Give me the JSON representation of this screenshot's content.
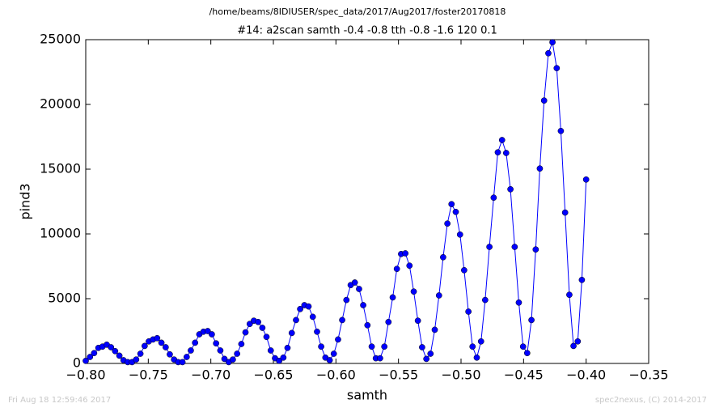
{
  "chart_data": {
    "type": "line",
    "title": "/home/beams/8IDIUSER/spec_data/2017/Aug2017/foster20170818",
    "subtitle": "#14: a2scan  samth -0.4 -0.8  tth -0.8 -1.6  120 0.1",
    "x_label": "samth",
    "y_label": "pind3",
    "footer_left": "Fri Aug 18 12:59:46 2017",
    "footer_right": "spec2nexus, (C) 2014-2017",
    "xlim": [
      -0.8,
      -0.35
    ],
    "ylim": [
      0,
      25000
    ],
    "xticks": [
      {
        "value": -0.8,
        "label": "−0.80"
      },
      {
        "value": -0.75,
        "label": "−0.75"
      },
      {
        "value": -0.7,
        "label": "−0.70"
      },
      {
        "value": -0.65,
        "label": "−0.65"
      },
      {
        "value": -0.6,
        "label": "−0.60"
      },
      {
        "value": -0.55,
        "label": "−0.55"
      },
      {
        "value": -0.5,
        "label": "−0.50"
      },
      {
        "value": -0.45,
        "label": "−0.45"
      },
      {
        "value": -0.4,
        "label": "−0.40"
      },
      {
        "value": -0.35,
        "label": "−0.35"
      }
    ],
    "yticks": [
      0,
      5000,
      10000,
      15000,
      20000,
      25000
    ],
    "x": [
      -0.8,
      -0.7966,
      -0.7933,
      -0.7899,
      -0.7866,
      -0.7832,
      -0.7798,
      -0.7765,
      -0.7731,
      -0.7698,
      -0.7664,
      -0.763,
      -0.7597,
      -0.7563,
      -0.7529,
      -0.7496,
      -0.7462,
      -0.7429,
      -0.7395,
      -0.7361,
      -0.7328,
      -0.7294,
      -0.7261,
      -0.7227,
      -0.7193,
      -0.716,
      -0.7126,
      -0.7092,
      -0.7059,
      -0.7025,
      -0.6992,
      -0.6958,
      -0.6924,
      -0.6891,
      -0.6857,
      -0.6824,
      -0.679,
      -0.6756,
      -0.6723,
      -0.6689,
      -0.6656,
      -0.6622,
      -0.6588,
      -0.6555,
      -0.6521,
      -0.6487,
      -0.6454,
      -0.642,
      -0.6387,
      -0.6353,
      -0.6319,
      -0.6286,
      -0.6252,
      -0.6219,
      -0.6185,
      -0.6151,
      -0.6118,
      -0.6084,
      -0.605,
      -0.6017,
      -0.5983,
      -0.595,
      -0.5916,
      -0.5882,
      -0.5849,
      -0.5815,
      -0.5782,
      -0.5748,
      -0.5714,
      -0.5681,
      -0.5647,
      -0.5613,
      -0.558,
      -0.5546,
      -0.5513,
      -0.5479,
      -0.5445,
      -0.5412,
      -0.5378,
      -0.5345,
      -0.5311,
      -0.5277,
      -0.5244,
      -0.521,
      -0.5176,
      -0.5143,
      -0.5109,
      -0.5076,
      -0.5042,
      -0.5008,
      -0.4975,
      -0.4941,
      -0.4908,
      -0.4874,
      -0.484,
      -0.4807,
      -0.4773,
      -0.4739,
      -0.4706,
      -0.4672,
      -0.4639,
      -0.4605,
      -0.4571,
      -0.4538,
      -0.4504,
      -0.4471,
      -0.4437,
      -0.4403,
      -0.437,
      -0.4336,
      -0.4302,
      -0.4269,
      -0.4235,
      -0.4202,
      -0.4168,
      -0.4134,
      -0.4101,
      -0.4067,
      -0.4034,
      -0.4
    ],
    "series": [
      {
        "name": "pind3",
        "color": "#0000ff",
        "values": [
          200,
          500,
          800,
          1200,
          1300,
          1450,
          1250,
          950,
          600,
          250,
          100,
          100,
          300,
          750,
          1350,
          1700,
          1850,
          1950,
          1600,
          1250,
          700,
          300,
          100,
          100,
          500,
          1000,
          1600,
          2250,
          2450,
          2500,
          2250,
          1550,
          1000,
          350,
          100,
          300,
          750,
          1500,
          2400,
          3050,
          3300,
          3200,
          2750,
          2050,
          1000,
          400,
          200,
          450,
          1200,
          2350,
          3350,
          4200,
          4500,
          4400,
          3600,
          2450,
          1300,
          450,
          250,
          750,
          1850,
          3350,
          4900,
          6050,
          6250,
          5750,
          4500,
          2950,
          1300,
          400,
          400,
          1300,
          3200,
          5100,
          7300,
          8450,
          8500,
          7550,
          5550,
          3300,
          1250,
          350,
          750,
          2600,
          5250,
          8200,
          10800,
          12300,
          11700,
          9950,
          7200,
          4000,
          1300,
          450,
          1700,
          4900,
          9000,
          12800,
          16300,
          17250,
          16250,
          13450,
          9000,
          4700,
          1300,
          800,
          3350,
          8800,
          15050,
          20300,
          23950,
          24800,
          22800,
          17950,
          11650,
          5300,
          1350,
          1700,
          6450,
          14200
        ]
      }
    ]
  }
}
